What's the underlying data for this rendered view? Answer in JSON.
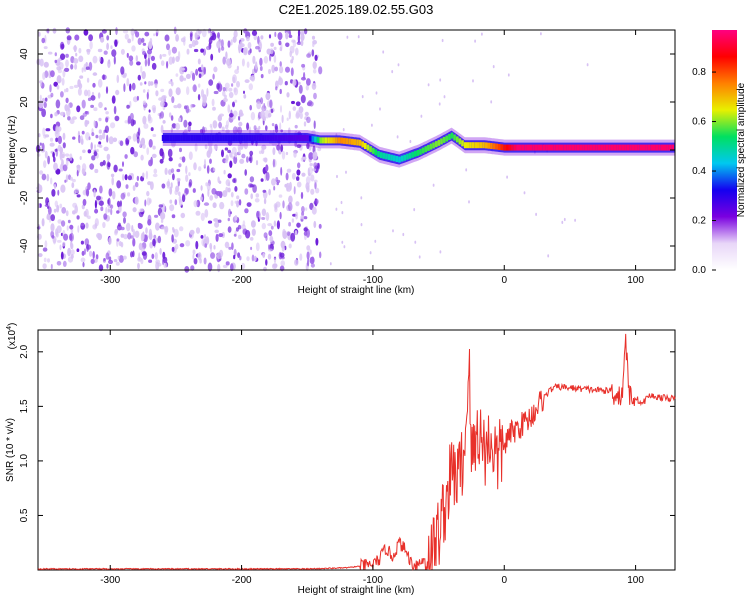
{
  "figure": {
    "title": "C2E1.2025.189.02.55.G03"
  },
  "chart_data": [
    {
      "type": "heatmap",
      "xlabel": "Height of straight line (km)",
      "ylabel": "Frequency (Hz)",
      "xlim": [
        -355,
        130
      ],
      "ylim": [
        -50,
        50
      ],
      "xticks": [
        -300,
        -200,
        -100,
        0,
        100
      ],
      "yticks": [
        -40,
        -20,
        0,
        20,
        40
      ],
      "colorbar": {
        "label": "Normalized spectral amplitude",
        "range": [
          0.0,
          0.97
        ],
        "ticks": [
          0.0,
          0.2,
          0.4,
          0.6,
          0.8
        ],
        "tick_labels": [
          "0.0",
          "0.2",
          "0.4",
          "0.6",
          "0.8"
        ],
        "colormap": [
          "#ffffff",
          "#e8d6f8",
          "#7a00e0",
          "#1400f0",
          "#00c8f0",
          "#00e060",
          "#e8f000",
          "#ff8000",
          "#ff0000",
          "#ff0080"
        ]
      },
      "noise_region_x": [
        -355,
        -140
      ],
      "ridge": [
        {
          "x": -260,
          "f": 5,
          "a": 0.3
        },
        {
          "x": -200,
          "f": 5,
          "a": 0.3
        },
        {
          "x": -150,
          "f": 5,
          "a": 0.25
        },
        {
          "x": -140,
          "f": 4,
          "a": 0.6
        },
        {
          "x": -125,
          "f": 4,
          "a": 0.75
        },
        {
          "x": -110,
          "f": 3,
          "a": 0.7
        },
        {
          "x": -95,
          "f": -2,
          "a": 0.5
        },
        {
          "x": -80,
          "f": -4,
          "a": 0.45
        },
        {
          "x": -65,
          "f": -1,
          "a": 0.55
        },
        {
          "x": -50,
          "f": 3,
          "a": 0.6
        },
        {
          "x": -40,
          "f": 6,
          "a": 0.55
        },
        {
          "x": -30,
          "f": 2,
          "a": 0.65
        },
        {
          "x": -15,
          "f": 2,
          "a": 0.7
        },
        {
          "x": 0,
          "f": 1,
          "a": 0.85
        },
        {
          "x": 10,
          "f": 1,
          "a": 0.95
        },
        {
          "x": 130,
          "f": 1,
          "a": 0.95
        }
      ]
    },
    {
      "type": "line",
      "xlabel": "Height of straight line (km)",
      "ylabel": "SNR (10 * v/v)",
      "y_multiplier_label": "(x10",
      "y_multiplier_exp": "4",
      "xlim": [
        -355,
        130
      ],
      "ylim": [
        0,
        2.2
      ],
      "xticks": [
        -300,
        -200,
        -100,
        0,
        100
      ],
      "yticks": [
        0.5,
        1.0,
        1.5,
        2.0
      ],
      "ytick_labels": [
        "0.5",
        "1.0",
        "1.5",
        "2.0"
      ],
      "series": [
        {
          "color": "#e8302a",
          "x": [
            -355,
            -300,
            -250,
            -200,
            -150,
            -120,
            -100,
            -95,
            -90,
            -85,
            -80,
            -75,
            -70,
            -65,
            -60,
            -55,
            -50,
            -45,
            -40,
            -35,
            -30,
            -27,
            -25,
            -20,
            -15,
            -10,
            -5,
            0,
            5,
            10,
            15,
            20,
            25,
            30,
            35,
            40,
            50,
            60,
            70,
            80,
            85,
            90,
            92,
            95,
            100,
            105,
            110,
            120,
            130
          ],
          "y": [
            0.01,
            0.01,
            0.01,
            0.01,
            0.01,
            0.02,
            0.05,
            0.1,
            0.2,
            0.12,
            0.25,
            0.18,
            0.05,
            0.06,
            0.1,
            0.15,
            0.35,
            0.6,
            0.9,
            0.85,
            1.1,
            1.98,
            1.0,
            1.3,
            1.1,
            1.2,
            1.0,
            1.15,
            1.25,
            1.3,
            1.35,
            1.4,
            1.5,
            1.58,
            1.65,
            1.68,
            1.67,
            1.66,
            1.65,
            1.64,
            1.62,
            1.6,
            2.15,
            1.62,
            1.58,
            1.52,
            1.6,
            1.58,
            1.57
          ]
        }
      ]
    }
  ]
}
